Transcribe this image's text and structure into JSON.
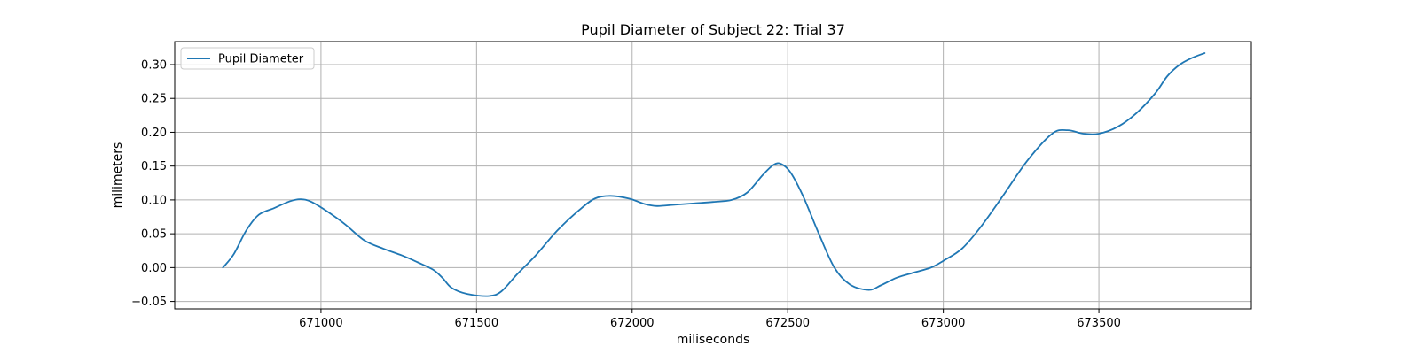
{
  "chart_data": {
    "type": "line",
    "title": "Pupil Diameter of Subject 22: Trial 37",
    "xlabel": "miliseconds",
    "ylabel": "milimeters",
    "xlim": [
      670530,
      673990
    ],
    "ylim": [
      -0.061,
      0.334
    ],
    "xticks": [
      671000,
      671500,
      672000,
      672500,
      673000,
      673500
    ],
    "yticks": [
      -0.05,
      0.0,
      0.05,
      0.1,
      0.15,
      0.2,
      0.25,
      0.3
    ],
    "ytick_labels": [
      "−0.05",
      "0.00",
      "0.05",
      "0.10",
      "0.15",
      "0.20",
      "0.25",
      "0.30"
    ],
    "grid": true,
    "legend": {
      "placement": "top-left",
      "entries": [
        "Pupil Diameter"
      ]
    },
    "colors": {
      "series": "#1f77b4",
      "grid": "#b0b0b0"
    },
    "series": [
      {
        "name": "Pupil Diameter",
        "x": [
          670685,
          670720,
          670760,
          670800,
          670850,
          670900,
          670935,
          670970,
          671030,
          671080,
          671140,
          671200,
          671260,
          671310,
          671360,
          671390,
          671420,
          671470,
          671540,
          671580,
          671630,
          671690,
          671760,
          671830,
          671880,
          671930,
          671990,
          672040,
          672080,
          672140,
          672200,
          672260,
          672320,
          672370,
          672420,
          672455,
          672480,
          672510,
          672550,
          672600,
          672650,
          672700,
          672760,
          672800,
          672850,
          672900,
          672960,
          673000,
          673060,
          673120,
          673190,
          673270,
          673350,
          673400,
          673450,
          673500,
          673560,
          673620,
          673680,
          673720,
          673760,
          673800,
          673840
        ],
        "y": [
          0.0,
          0.02,
          0.055,
          0.078,
          0.088,
          0.098,
          0.101,
          0.097,
          0.08,
          0.063,
          0.04,
          0.028,
          0.018,
          0.008,
          -0.003,
          -0.015,
          -0.03,
          -0.039,
          -0.042,
          -0.035,
          -0.01,
          0.018,
          0.055,
          0.085,
          0.102,
          0.106,
          0.102,
          0.094,
          0.091,
          0.093,
          0.095,
          0.097,
          0.1,
          0.111,
          0.137,
          0.152,
          0.153,
          0.14,
          0.105,
          0.05,
          0.0,
          -0.025,
          -0.033,
          -0.026,
          -0.015,
          -0.008,
          0.0,
          0.01,
          0.028,
          0.06,
          0.105,
          0.158,
          0.198,
          0.203,
          0.198,
          0.198,
          0.208,
          0.228,
          0.257,
          0.283,
          0.3,
          0.31,
          0.317
        ]
      }
    ]
  }
}
